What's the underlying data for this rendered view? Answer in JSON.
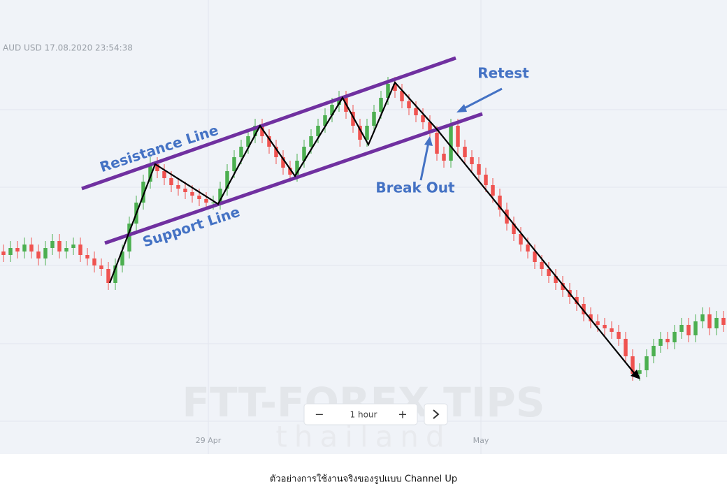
{
  "chart_data": {
    "type": "candlestick",
    "title": "AUD USD 17.08.2020 23:54:38",
    "xlim": [
      0,
      104
    ],
    "ylim": [
      0,
      124
    ],
    "xticks": [
      {
        "value": 29.8,
        "label": "29 Apr"
      },
      {
        "value": 68.8,
        "label": "May"
      }
    ],
    "up_color": "#4caf50",
    "down_color": "#ef5350",
    "open": [
      52,
      51,
      53,
      52,
      54,
      52,
      50,
      53,
      55,
      52,
      53,
      54,
      51,
      50,
      48,
      47,
      43,
      48,
      52,
      60,
      66,
      72,
      77,
      75,
      73,
      71,
      70,
      69,
      68,
      67,
      66,
      66,
      70,
      75,
      79,
      82,
      85,
      88,
      85,
      82,
      79,
      76,
      74,
      78,
      82,
      85,
      88,
      91,
      94,
      96,
      92,
      88,
      84,
      88,
      92,
      96,
      100,
      98,
      95,
      93,
      91,
      89,
      86,
      80,
      78,
      88,
      82,
      79,
      77,
      74,
      71,
      68,
      64,
      60,
      57,
      54,
      52,
      49,
      47,
      45,
      43,
      41,
      39,
      37,
      34,
      32,
      31,
      30,
      29,
      27,
      22,
      17,
      18,
      22,
      25,
      27,
      26,
      29,
      31,
      28,
      32,
      34,
      30,
      33
    ],
    "high": [
      54,
      55,
      55,
      56,
      56,
      54,
      55,
      57,
      57,
      55,
      56,
      56,
      53,
      52,
      50,
      49,
      50,
      54,
      62,
      68,
      74,
      79,
      79,
      77,
      75,
      73,
      72,
      71,
      70,
      69,
      68,
      72,
      77,
      81,
      84,
      87,
      90,
      90,
      87,
      84,
      81,
      78,
      80,
      84,
      87,
      90,
      93,
      96,
      98,
      98,
      94,
      90,
      90,
      94,
      98,
      102,
      102,
      100,
      97,
      95,
      93,
      91,
      88,
      82,
      90,
      90,
      84,
      81,
      79,
      76,
      73,
      70,
      66,
      62,
      59,
      56,
      54,
      51,
      49,
      47,
      45,
      43,
      41,
      39,
      36,
      34,
      33,
      32,
      31,
      29,
      24,
      20,
      24,
      27,
      29,
      29,
      31,
      33,
      33,
      34,
      36,
      36,
      35,
      35
    ],
    "low": [
      49,
      49,
      50,
      50,
      50,
      48,
      48,
      51,
      50,
      50,
      51,
      49,
      48,
      46,
      45,
      41,
      41,
      46,
      50,
      58,
      64,
      70,
      73,
      71,
      69,
      68,
      67,
      66,
      65,
      64,
      64,
      64,
      68,
      73,
      77,
      80,
      83,
      83,
      80,
      77,
      74,
      72,
      72,
      76,
      80,
      83,
      86,
      89,
      92,
      90,
      86,
      82,
      82,
      86,
      90,
      94,
      96,
      93,
      91,
      89,
      87,
      84,
      78,
      76,
      76,
      80,
      77,
      75,
      72,
      69,
      66,
      62,
      58,
      55,
      52,
      50,
      47,
      45,
      43,
      41,
      39,
      37,
      35,
      32,
      30,
      29,
      28,
      27,
      25,
      20,
      15,
      15,
      16,
      20,
      23,
      24,
      24,
      27,
      26,
      26,
      30,
      28,
      28,
      29
    ],
    "close": [
      51,
      53,
      52,
      54,
      52,
      50,
      53,
      55,
      52,
      53,
      54,
      51,
      50,
      48,
      47,
      43,
      48,
      52,
      60,
      66,
      72,
      77,
      75,
      73,
      71,
      70,
      69,
      68,
      67,
      66,
      66,
      70,
      75,
      79,
      82,
      85,
      88,
      85,
      82,
      79,
      76,
      74,
      78,
      82,
      85,
      88,
      91,
      94,
      96,
      92,
      88,
      84,
      88,
      92,
      96,
      100,
      98,
      95,
      93,
      91,
      89,
      86,
      80,
      78,
      88,
      82,
      79,
      77,
      74,
      71,
      68,
      64,
      60,
      57,
      54,
      52,
      49,
      47,
      45,
      43,
      41,
      39,
      37,
      34,
      32,
      31,
      30,
      29,
      27,
      22,
      17,
      18,
      22,
      25,
      27,
      26,
      29,
      31,
      28,
      32,
      34,
      30,
      33,
      31
    ],
    "annotations": {
      "resistance": "Resistance Line",
      "support": "Support Line",
      "retest": "Retest",
      "breakout": "Break Out"
    }
  },
  "toolbar": {
    "zoom_out": "−",
    "interval": "1 hour",
    "zoom_in": "+"
  },
  "watermark": {
    "brand": "FTT-FOREX TIPS",
    "region": "thailand"
  },
  "caption": "ตัวอย่างการใช้งานจริงของรูปแบบ Channel Up"
}
